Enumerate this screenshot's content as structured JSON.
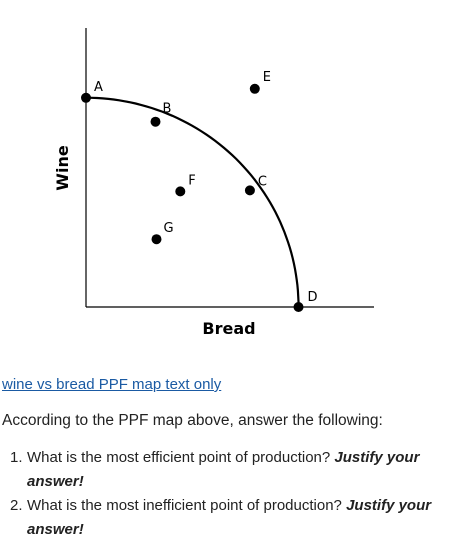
{
  "chart_data": {
    "type": "scatter",
    "title": "",
    "xlabel": "Bread",
    "ylabel": "Wine",
    "xlim": [
      0,
      290
    ],
    "ylim": [
      0,
      280
    ],
    "grid": false,
    "ppf_curve_points": [
      "A",
      "B",
      "C",
      "D"
    ],
    "points": [
      {
        "label": "A",
        "x": 0,
        "y": 210
      },
      {
        "label": "B",
        "x": 70,
        "y": 186
      },
      {
        "label": "C",
        "x": 165,
        "y": 117
      },
      {
        "label": "D",
        "x": 214,
        "y": 0
      },
      {
        "label": "E",
        "x": 170,
        "y": 219
      },
      {
        "label": "F",
        "x": 95,
        "y": 116
      },
      {
        "label": "G",
        "x": 71,
        "y": 68
      }
    ]
  },
  "caption": {
    "link_text": "wine vs bread PPF map text only"
  },
  "intro": "According to the PPF map above, answer the following:",
  "questions": [
    {
      "number": "1.",
      "text": "What is the most efficient point of production? ",
      "emphasis": "Justify your answer!"
    },
    {
      "number": "2.",
      "text": "What is the most inefficient point of production? ",
      "emphasis": "Justify your answer!"
    }
  ]
}
